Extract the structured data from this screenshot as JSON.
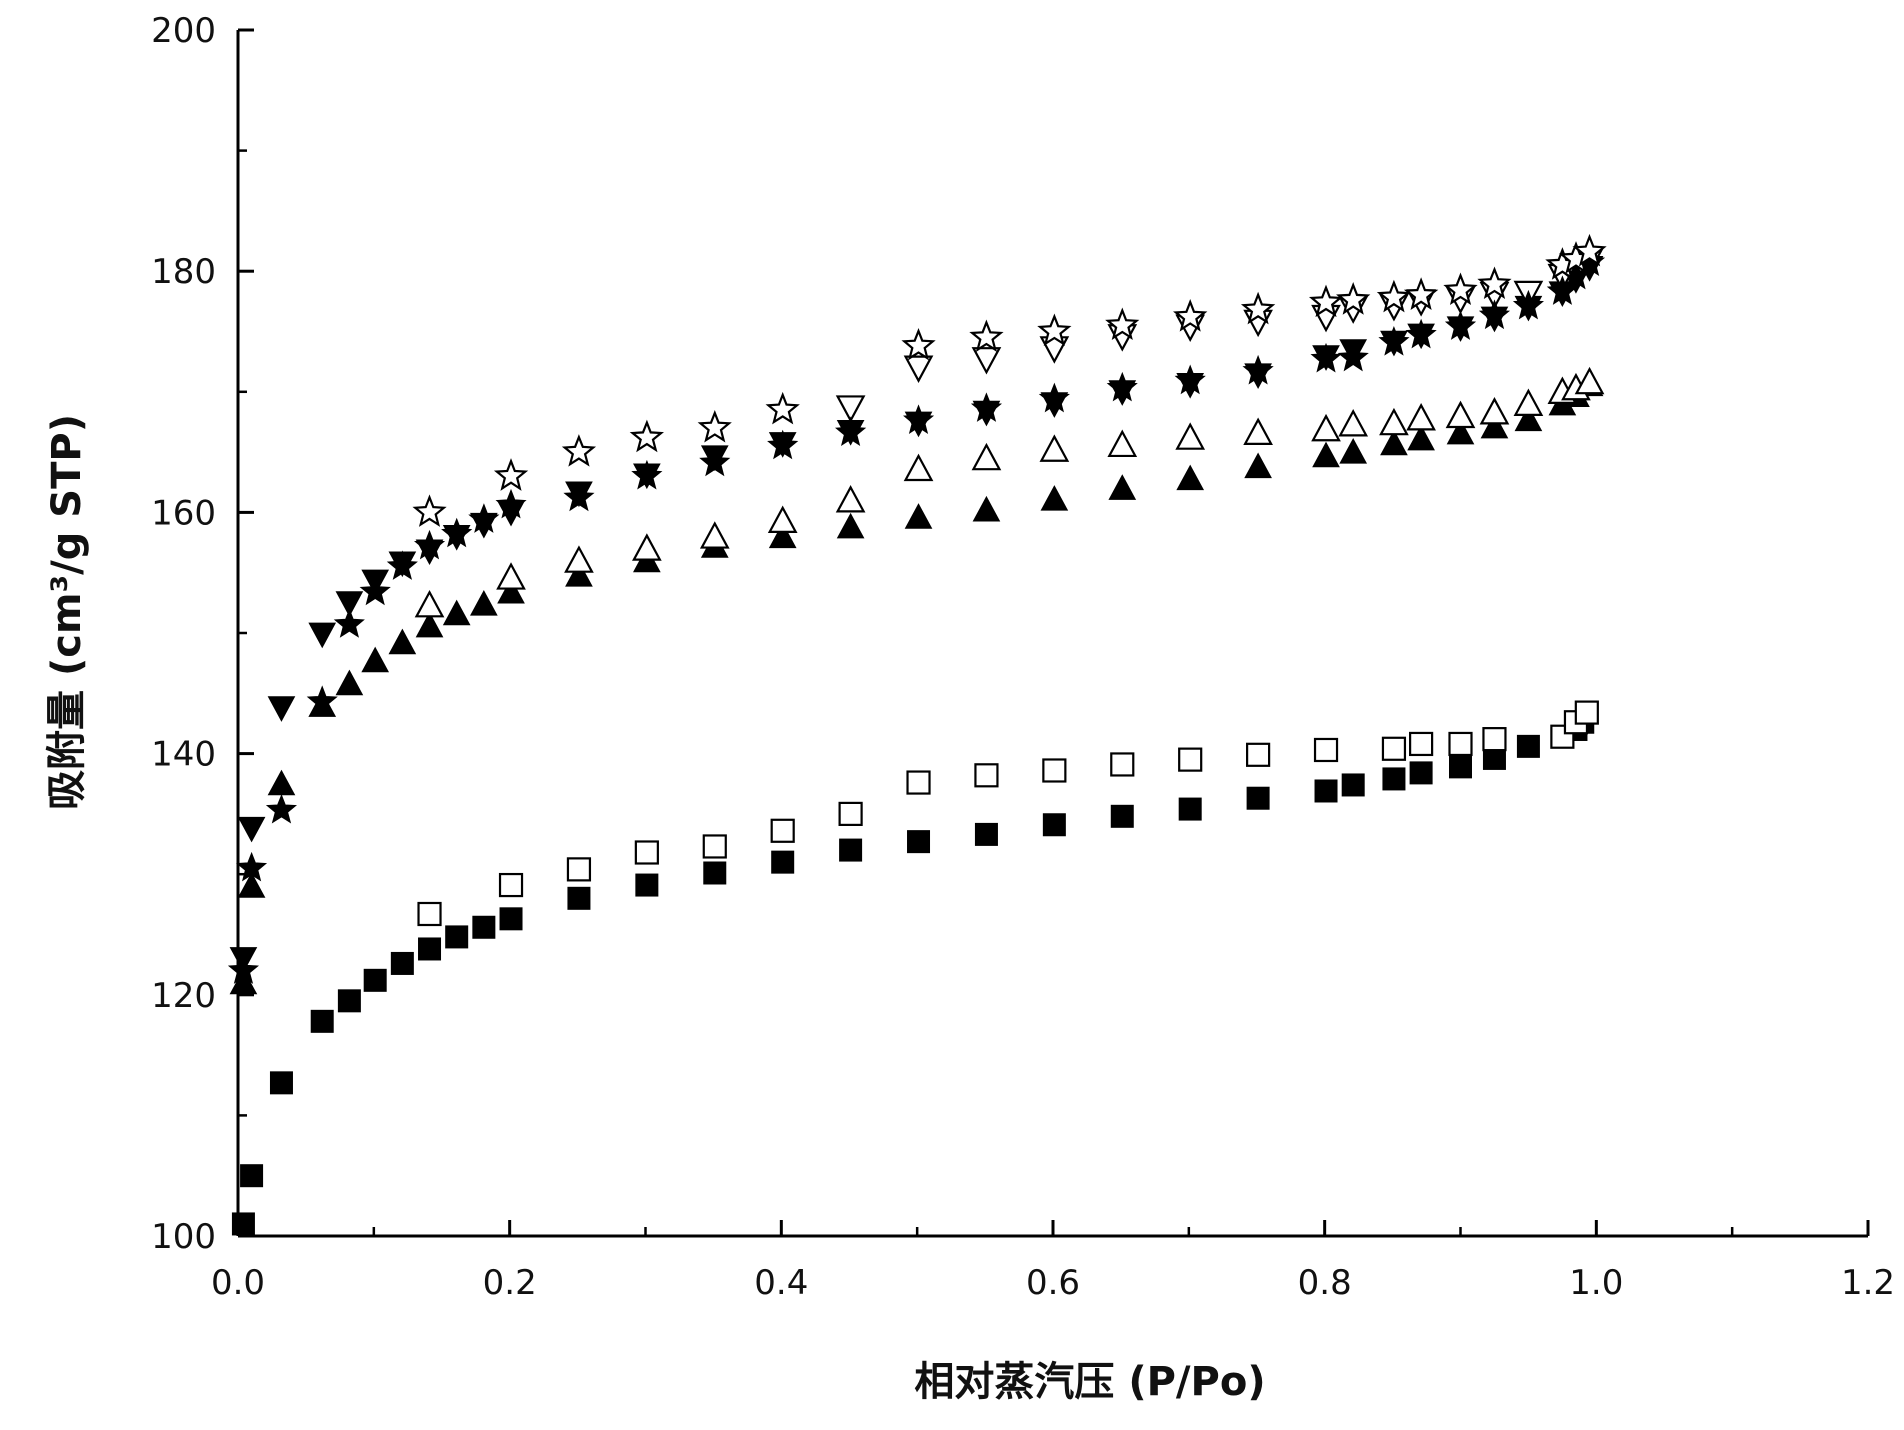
{
  "chart_data": {
    "type": "scatter",
    "title": "",
    "xlabel": "相对蒸汽压 (P/Po)",
    "ylabel": "吸附量 (cm³/g STP)",
    "xlim": [
      0.0,
      1.2
    ],
    "ylim": [
      100,
      200
    ],
    "x_ticks": [
      0.0,
      0.2,
      0.4,
      0.6,
      0.8,
      1.0,
      1.2
    ],
    "x_tick_labels": [
      "0.0",
      "0.2",
      "0.4",
      "0.6",
      "0.8",
      "1.0",
      "1.2"
    ],
    "y_ticks": [
      100,
      120,
      140,
      160,
      180,
      200
    ],
    "y_tick_labels": [
      "100",
      "120",
      "140",
      "160",
      "180",
      "200"
    ],
    "grid": false,
    "legend": "none",
    "marker_color": "#000000",
    "series": [
      {
        "marker": "filled-square",
        "x": [
          0.004,
          0.01,
          0.032,
          0.062,
          0.082,
          0.101,
          0.121,
          0.141,
          0.161,
          0.181,
          0.201,
          0.251,
          0.301,
          0.351,
          0.401,
          0.451,
          0.501,
          0.551,
          0.601,
          0.651,
          0.701,
          0.751,
          0.801,
          0.821,
          0.851,
          0.871,
          0.9,
          0.925,
          0.95,
          0.975,
          0.985,
          0.99
        ],
        "y": [
          101,
          105,
          112.7,
          117.8,
          119.5,
          121.2,
          122.6,
          123.8,
          124.8,
          125.6,
          126.3,
          128,
          129.1,
          130.1,
          131,
          132,
          132.7,
          133.3,
          134.1,
          134.8,
          135.4,
          136.3,
          136.9,
          137.4,
          137.9,
          138.4,
          138.9,
          139.6,
          140.6,
          141.4,
          142,
          142.6
        ]
      },
      {
        "marker": "open-square",
        "x": [
          0.141,
          0.201,
          0.251,
          0.301,
          0.351,
          0.401,
          0.451,
          0.501,
          0.551,
          0.601,
          0.651,
          0.701,
          0.751,
          0.801,
          0.851,
          0.871,
          0.9,
          0.925,
          0.975,
          0.985,
          0.993
        ],
        "y": [
          126.7,
          129.1,
          130.4,
          131.8,
          132.3,
          133.6,
          135,
          137.6,
          138.2,
          138.6,
          139.1,
          139.5,
          139.9,
          140.3,
          140.4,
          140.8,
          140.8,
          141.2,
          141.4,
          142.6,
          143.4
        ]
      },
      {
        "marker": "filled-triangle-up",
        "x": [
          0.004,
          0.01,
          0.032,
          0.062,
          0.082,
          0.101,
          0.121,
          0.141,
          0.161,
          0.181,
          0.201,
          0.251,
          0.301,
          0.351,
          0.401,
          0.451,
          0.501,
          0.551,
          0.601,
          0.651,
          0.701,
          0.751,
          0.801,
          0.821,
          0.851,
          0.871,
          0.9,
          0.925,
          0.95,
          0.975,
          0.985,
          0.995
        ],
        "y": [
          121,
          129,
          137.5,
          144,
          145.8,
          147.7,
          149.2,
          150.6,
          151.6,
          152.4,
          153.4,
          154.8,
          156,
          157.2,
          158,
          158.8,
          159.6,
          160.2,
          161.1,
          162,
          162.8,
          163.8,
          164.7,
          165,
          165.7,
          166.1,
          166.6,
          167.1,
          167.7,
          169,
          169.7,
          170.6
        ]
      },
      {
        "marker": "open-triangle-up",
        "x": [
          0.141,
          0.201,
          0.251,
          0.301,
          0.351,
          0.401,
          0.451,
          0.501,
          0.551,
          0.601,
          0.651,
          0.701,
          0.751,
          0.801,
          0.821,
          0.851,
          0.871,
          0.9,
          0.925,
          0.95,
          0.975,
          0.985,
          0.995
        ],
        "y": [
          152.3,
          154.6,
          156,
          157,
          158,
          159.3,
          161,
          163.6,
          164.5,
          165.2,
          165.6,
          166.2,
          166.6,
          166.9,
          167.3,
          167.4,
          167.8,
          168,
          168.3,
          169,
          170,
          170.3,
          170.8
        ]
      },
      {
        "marker": "filled-triangle-down",
        "x": [
          0.004,
          0.01,
          0.032,
          0.062,
          0.082,
          0.101,
          0.121,
          0.141,
          0.161,
          0.181,
          0.201,
          0.251,
          0.301,
          0.351,
          0.401,
          0.451,
          0.501,
          0.551,
          0.601,
          0.651,
          0.701,
          0.751,
          0.801,
          0.821,
          0.851,
          0.871,
          0.9,
          0.925,
          0.95,
          0.975,
          0.985,
          0.995
        ],
        "y": [
          123,
          133.8,
          143.8,
          149.9,
          152.5,
          154.3,
          155.8,
          156.8,
          158,
          159,
          160,
          161.6,
          163.1,
          164.6,
          165.7,
          166.7,
          167.4,
          168.3,
          169,
          170,
          170.6,
          171.4,
          172.9,
          173.4,
          174.1,
          174.7,
          175.3,
          176.1,
          177,
          178.2,
          179.3,
          180.3
        ]
      },
      {
        "marker": "open-triangle-down",
        "x": [
          0.451,
          0.501,
          0.551,
          0.601,
          0.651,
          0.701,
          0.751,
          0.801,
          0.821,
          0.851,
          0.871,
          0.9,
          0.925,
          0.95,
          0.975,
          0.985,
          0.995
        ],
        "y": [
          168.7,
          172,
          172.7,
          173.6,
          174.6,
          175.4,
          175.8,
          176.2,
          176.9,
          177.1,
          177.5,
          177.7,
          178.1,
          178.2,
          179.6,
          180.1,
          181
        ]
      },
      {
        "marker": "filled-star",
        "x": [
          0.004,
          0.01,
          0.032,
          0.062,
          0.082,
          0.101,
          0.121,
          0.141,
          0.161,
          0.181,
          0.201,
          0.251,
          0.301,
          0.351,
          0.401,
          0.451,
          0.501,
          0.551,
          0.601,
          0.651,
          0.701,
          0.751,
          0.801,
          0.821,
          0.851,
          0.871,
          0.9,
          0.925,
          0.95,
          0.975,
          0.985,
          0.995
        ],
        "y": [
          122,
          130.5,
          135.3,
          144.3,
          150.7,
          153.4,
          155.5,
          157.2,
          158.2,
          159.4,
          160.6,
          161.2,
          163,
          164.1,
          165.5,
          166.6,
          167.6,
          168.6,
          169.4,
          170.3,
          170.9,
          171.7,
          172.7,
          172.8,
          174.1,
          174.7,
          175.4,
          176.3,
          177.1,
          178.3,
          179.6,
          180.7
        ]
      },
      {
        "marker": "open-star",
        "x": [
          0.141,
          0.201,
          0.251,
          0.301,
          0.351,
          0.401,
          0.501,
          0.551,
          0.601,
          0.651,
          0.701,
          0.751,
          0.801,
          0.821,
          0.851,
          0.871,
          0.9,
          0.925,
          0.975,
          0.985,
          0.995
        ],
        "y": [
          160,
          163,
          165,
          166.2,
          167,
          168.5,
          173.8,
          174.5,
          175,
          175.5,
          176.2,
          176.8,
          177.4,
          177.6,
          177.8,
          178,
          178.4,
          178.9,
          180.5,
          181,
          181.6
        ]
      }
    ]
  }
}
